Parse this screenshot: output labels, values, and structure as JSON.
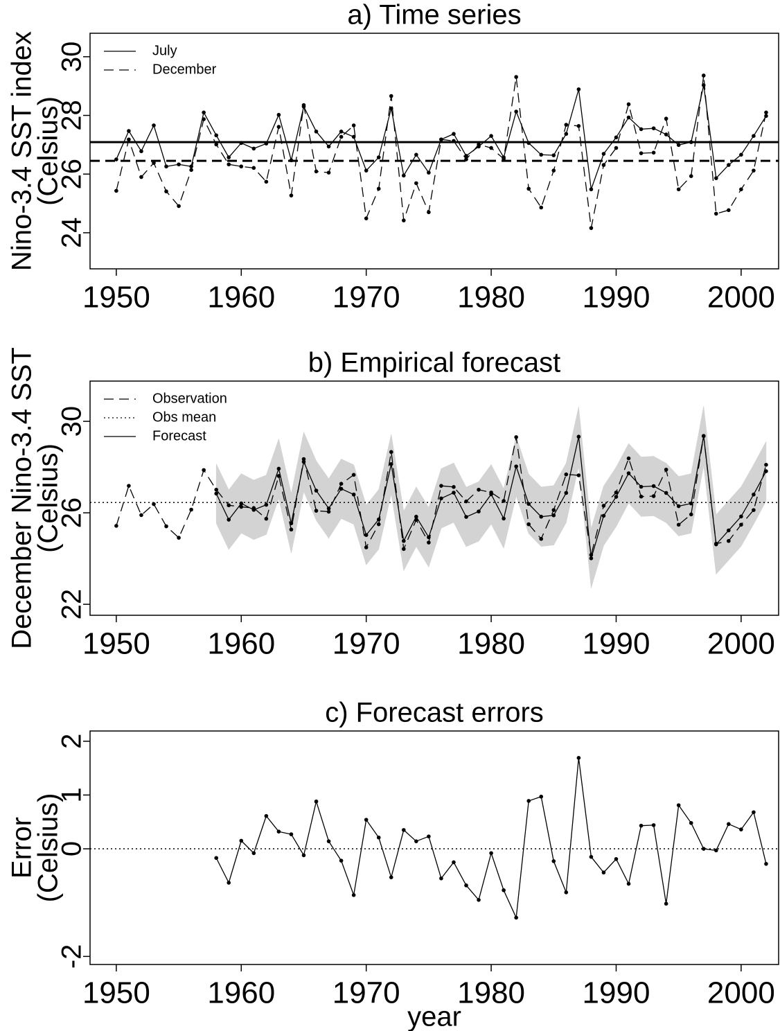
{
  "chart_data": [
    {
      "type": "line",
      "title": "a) Time series",
      "ylabel": [
        "Nino-3.4 SST index",
        "(Celsius)"
      ],
      "xlim": [
        1947.9,
        2003.0
      ],
      "ylim": [
        22.77,
        30.8
      ],
      "xticks": [
        1950,
        1960,
        1970,
        1980,
        1990,
        2000
      ],
      "yticks": [
        24,
        26,
        28,
        30
      ],
      "legend": "top-left",
      "series": [
        {
          "name": "July",
          "linestyle": "solid",
          "color": "#000000",
          "x": [
            1950,
            1951,
            1952,
            1953,
            1954,
            1955,
            1956,
            1957,
            1958,
            1959,
            1960,
            1961,
            1962,
            1963,
            1964,
            1965,
            1966,
            1967,
            1968,
            1969,
            1970,
            1971,
            1972,
            1973,
            1974,
            1975,
            1976,
            1977,
            1978,
            1979,
            1980,
            1981,
            1982,
            1983,
            1984,
            1985,
            1986,
            1987,
            1988,
            1989,
            1990,
            1991,
            1992,
            1993,
            1994,
            1995,
            1996,
            1997,
            1998,
            1999,
            2000,
            2001,
            2002
          ],
          "values": [
            26.5,
            27.47,
            26.78,
            27.66,
            26.26,
            26.33,
            26.26,
            28.1,
            27.32,
            26.57,
            27.06,
            26.87,
            27.04,
            28.02,
            26.47,
            28.3,
            27.45,
            26.94,
            27.45,
            27.27,
            26.12,
            26.57,
            28.24,
            25.95,
            26.66,
            26.05,
            27.18,
            27.37,
            26.62,
            26.94,
            27.3,
            26.57,
            28.13,
            27.06,
            26.66,
            26.64,
            27.37,
            28.89,
            25.48,
            26.69,
            27.25,
            27.93,
            27.53,
            27.56,
            27.35,
            26.99,
            27.09,
            29.03,
            25.86,
            26.31,
            26.66,
            27.3,
            27.98
          ]
        },
        {
          "name": "December",
          "linestyle": "dashed",
          "color": "#000000",
          "x": [
            1950,
            1951,
            1952,
            1953,
            1954,
            1955,
            1956,
            1957,
            1958,
            1959,
            1960,
            1961,
            1962,
            1963,
            1964,
            1965,
            1966,
            1967,
            1968,
            1969,
            1970,
            1971,
            1972,
            1973,
            1974,
            1975,
            1976,
            1977,
            1978,
            1979,
            1980,
            1981,
            1982,
            1983,
            1984,
            1985,
            1986,
            1987,
            1988,
            1989,
            1990,
            1991,
            1992,
            1993,
            1994,
            1995,
            1996,
            1997,
            1998,
            1999,
            2000,
            2001,
            2002
          ],
          "values": [
            25.43,
            27.18,
            25.9,
            26.38,
            25.41,
            24.91,
            26.14,
            27.87,
            27.01,
            26.33,
            26.26,
            26.21,
            25.74,
            27.61,
            25.27,
            28.35,
            26.09,
            26.05,
            27.27,
            27.66,
            24.49,
            25.5,
            28.66,
            24.42,
            25.69,
            24.7,
            27.18,
            27.13,
            26.5,
            27.01,
            26.89,
            26.52,
            29.31,
            25.5,
            24.86,
            26.12,
            27.68,
            27.64,
            24.16,
            26.31,
            26.89,
            28.38,
            26.71,
            26.73,
            27.89,
            25.48,
            25.93,
            29.36,
            24.65,
            24.77,
            25.48,
            26.12,
            28.1
          ]
        },
        {
          "hline": 27.09,
          "linestyle": "solid",
          "linewidth": 3,
          "color": "#000000"
        },
        {
          "hline": 26.45,
          "linestyle": "dashed",
          "linewidth": 3,
          "color": "#000000"
        }
      ]
    },
    {
      "type": "line",
      "title": "b) Empirical forecast",
      "ylabel": [
        "December Nino-3.4 SST",
        "(Celsius)"
      ],
      "xlim": [
        1947.9,
        2003.0
      ],
      "ylim": [
        21.52,
        31.76
      ],
      "xticks": [
        1950,
        1960,
        1970,
        1980,
        1990,
        2000
      ],
      "yticks": [
        22,
        26,
        30
      ],
      "legend": "top-left",
      "series": [
        {
          "name": "Observation",
          "linestyle": "dashed",
          "color": "#000000",
          "x": [
            1950,
            1951,
            1952,
            1953,
            1954,
            1955,
            1956,
            1957,
            1958,
            1959,
            1960,
            1961,
            1962,
            1963,
            1964,
            1965,
            1966,
            1967,
            1968,
            1969,
            1970,
            1971,
            1972,
            1973,
            1974,
            1975,
            1976,
            1977,
            1978,
            1979,
            1980,
            1981,
            1982,
            1983,
            1984,
            1985,
            1986,
            1987,
            1988,
            1989,
            1990,
            1991,
            1992,
            1993,
            1994,
            1995,
            1996,
            1997,
            1998,
            1999,
            2000,
            2001,
            2002
          ],
          "values": [
            25.43,
            27.18,
            25.9,
            26.38,
            25.41,
            24.91,
            26.14,
            27.87,
            27.01,
            26.33,
            26.26,
            26.21,
            25.74,
            27.61,
            25.27,
            28.35,
            26.09,
            26.05,
            27.27,
            27.66,
            24.49,
            25.5,
            28.66,
            24.42,
            25.69,
            24.7,
            27.18,
            27.13,
            26.5,
            27.01,
            26.89,
            26.52,
            29.31,
            25.5,
            24.86,
            26.12,
            27.68,
            27.64,
            24.16,
            26.31,
            26.89,
            28.38,
            26.71,
            26.73,
            27.89,
            25.48,
            25.93,
            29.36,
            24.65,
            24.77,
            25.48,
            26.12,
            28.1
          ]
        },
        {
          "name": "Obs mean",
          "hline": 26.45,
          "linestyle": "dotted",
          "linewidth": 1.5,
          "color": "#000000"
        },
        {
          "name": "Forecast",
          "linestyle": "solid",
          "color": "#000000",
          "band_color": "#d3d3d3",
          "x": [
            1958,
            1959,
            1960,
            1961,
            1962,
            1963,
            1964,
            1965,
            1966,
            1967,
            1968,
            1969,
            1970,
            1971,
            1972,
            1973,
            1974,
            1975,
            1976,
            1977,
            1978,
            1979,
            1980,
            1981,
            1982,
            1983,
            1984,
            1985,
            1986,
            1987,
            1988,
            1989,
            1990,
            1991,
            1992,
            1993,
            1994,
            1995,
            1996,
            1997,
            1998,
            1999,
            2000,
            2001,
            2002
          ],
          "values": [
            26.84,
            25.7,
            26.41,
            26.13,
            26.35,
            27.93,
            25.54,
            28.23,
            26.97,
            26.19,
            27.05,
            26.8,
            25.03,
            25.71,
            28.13,
            24.77,
            25.83,
            24.93,
            26.63,
            26.88,
            25.82,
            26.06,
            26.81,
            25.75,
            28.03,
            26.39,
            25.83,
            25.89,
            26.87,
            29.33,
            24.01,
            25.87,
            26.7,
            27.73,
            27.14,
            27.17,
            26.87,
            26.29,
            26.41,
            29.36,
            24.62,
            25.23,
            25.84,
            26.8,
            27.82
          ],
          "band_errors": [
            1.3,
            1.3,
            1.3,
            1.3,
            1.3,
            1.3,
            1.3,
            1.3,
            1.3,
            1.3,
            1.3,
            1.3,
            1.3,
            1.3,
            1.3,
            1.3,
            1.3,
            1.3,
            1.3,
            1.3,
            1.3,
            1.3,
            1.3,
            1.3,
            1.3,
            1.3,
            1.3,
            1.3,
            1.3,
            1.3,
            1.3,
            1.3,
            1.3,
            1.3,
            1.3,
            1.3,
            1.3,
            1.3,
            1.3,
            1.3,
            1.3,
            1.3,
            1.3,
            1.3,
            1.3
          ]
        }
      ]
    },
    {
      "type": "line",
      "title": "c) Forecast errors",
      "ylabel": [
        "Error",
        "(Celsius)"
      ],
      "xlabel": "year",
      "xlim": [
        1947.9,
        2003.0
      ],
      "ylim": [
        -2.15,
        2.19
      ],
      "xticks": [
        1950,
        1960,
        1970,
        1980,
        1990,
        2000
      ],
      "yticks": [
        -2,
        0,
        1,
        2
      ],
      "series": [
        {
          "linestyle": "solid",
          "color": "#000000",
          "x": [
            1958,
            1959,
            1960,
            1961,
            1962,
            1963,
            1964,
            1965,
            1966,
            1967,
            1968,
            1969,
            1970,
            1971,
            1972,
            1973,
            1974,
            1975,
            1976,
            1977,
            1978,
            1979,
            1980,
            1981,
            1982,
            1983,
            1984,
            1985,
            1986,
            1987,
            1988,
            1989,
            1990,
            1991,
            1992,
            1993,
            1994,
            1995,
            1996,
            1997,
            1998,
            1999,
            2000,
            2001,
            2002
          ],
          "values": [
            -0.17,
            -0.63,
            0.15,
            -0.08,
            0.61,
            0.32,
            0.27,
            -0.12,
            0.88,
            0.14,
            -0.22,
            -0.86,
            0.54,
            0.21,
            -0.53,
            0.35,
            0.14,
            0.23,
            -0.55,
            -0.25,
            -0.68,
            -0.95,
            -0.08,
            -0.77,
            -1.28,
            0.89,
            0.97,
            -0.23,
            -0.81,
            1.69,
            -0.15,
            -0.44,
            -0.19,
            -0.65,
            0.43,
            0.44,
            -1.02,
            0.81,
            0.48,
            0.0,
            -0.03,
            0.46,
            0.36,
            0.68,
            -0.28
          ]
        },
        {
          "hline": 0,
          "linestyle": "dotted",
          "linewidth": 1.5,
          "color": "#000000"
        }
      ]
    }
  ]
}
